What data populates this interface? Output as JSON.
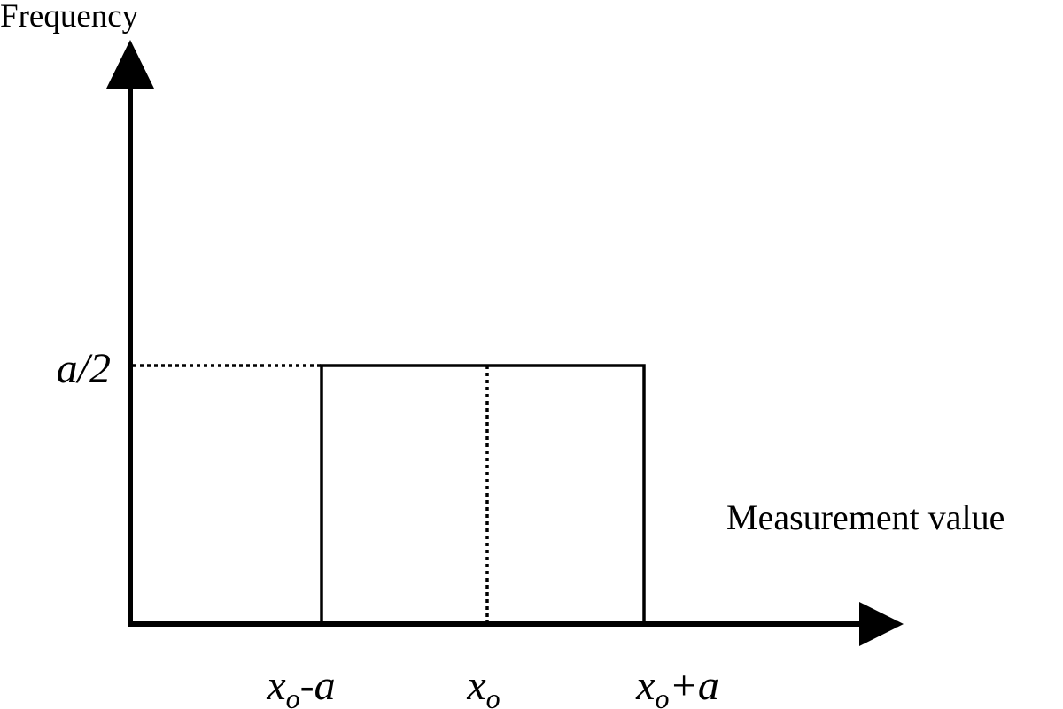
{
  "y_axis": {
    "label": "Frequency"
  },
  "x_axis": {
    "label": "Measurement value",
    "labels": [
      {
        "base": "x",
        "sub": "o",
        "suffix": "-a"
      },
      {
        "base": "x",
        "sub": "o"
      },
      {
        "base": "x",
        "sub": "o",
        "suffix": "+a"
      }
    ]
  },
  "level_label": "a/2"
}
